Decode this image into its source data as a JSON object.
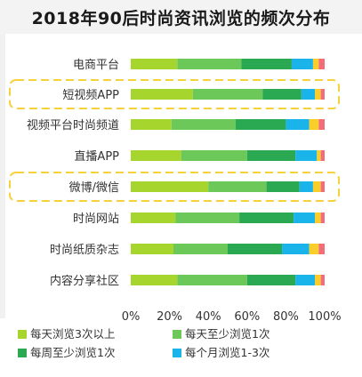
{
  "chart_data": {
    "type": "bar",
    "orientation": "horizontal",
    "stacked": true,
    "title": "2018年90后时尚资讯浏览的频次分布",
    "xlabel": "",
    "ylabel": "",
    "xlim": [
      0,
      100
    ],
    "x_ticks": [
      "0%",
      "20%",
      "40%",
      "60%",
      "80%",
      "100%"
    ],
    "grid": false,
    "legend_position": "bottom",
    "categories": [
      "电商平台",
      "短视频APP",
      "视频平台时尚频道",
      "直播APP",
      "微博/微信",
      "时尚网站",
      "时尚纸质杂志",
      "内容分享社区"
    ],
    "highlighted": [
      "短视频APP",
      "微博/微信"
    ],
    "series": [
      {
        "name": "每天浏览3次以上",
        "color": "#a6d52d",
        "values": [
          24,
          32,
          21,
          26,
          40,
          23,
          22,
          24
        ]
      },
      {
        "name": "每天至少浏览1次",
        "color": "#6dc85a",
        "values": [
          33,
          36,
          33,
          34,
          30,
          33,
          28,
          36
        ]
      },
      {
        "name": "每周至少浏览1次",
        "color": "#2aa952",
        "values": [
          26,
          20,
          26,
          25,
          17,
          28,
          28,
          25
        ]
      },
      {
        "name": "每个月浏览1-3次",
        "color": "#1ab4ea",
        "values": [
          11,
          7,
          12,
          11,
          7,
          11,
          14,
          10
        ]
      },
      {
        "name": "",
        "color": "#f9cd2a",
        "values": [
          3,
          3,
          5,
          2,
          4,
          3,
          5,
          3
        ]
      },
      {
        "name": "",
        "color": "#f46c7c",
        "values": [
          3,
          2,
          3,
          2,
          2,
          2,
          3,
          2
        ]
      }
    ]
  },
  "colors": {
    "highlight_box": "#f5d23b",
    "axis_text": "#333333"
  }
}
